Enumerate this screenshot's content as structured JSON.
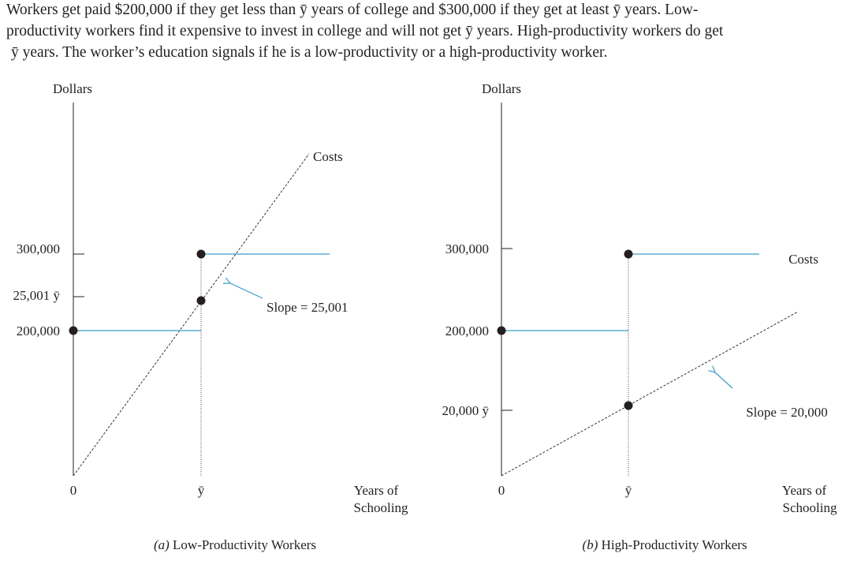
{
  "header": {
    "lines": [
      "Workers get paid $200,000 if they get less than ȳ years of college and $300,000 if they get at least ȳ years. Low-",
      "productivity workers find it expensive to invest in college and will not get ȳ years. High-productivity workers do get",
      "ȳ years. The worker’s education signals if he is a low-productivity or a high-productivity worker."
    ]
  },
  "panels": [
    {
      "y_axis_label": "Dollars",
      "y_labels": [
        "300,000",
        "25,001 ȳ",
        "200,000"
      ],
      "curve_label": "Costs",
      "slope_label": "Slope = 25,001",
      "x_labels": [
        "0",
        "ȳ"
      ],
      "x_axis_label": [
        "Years of",
        "Schooling"
      ],
      "letter": "(a)",
      "title": "Low-Productivity Workers"
    },
    {
      "y_axis_label": "Dollars",
      "y_labels": [
        "300,000",
        "200,000",
        "20,000 ȳ"
      ],
      "curve_label": "Costs",
      "slope_label": "Slope = 20,000",
      "x_labels": [
        "0",
        "ȳ"
      ],
      "x_axis_label": [
        "Years of",
        "Schooling"
      ],
      "letter": "(b)",
      "title": "High-Productivity Workers"
    }
  ]
}
